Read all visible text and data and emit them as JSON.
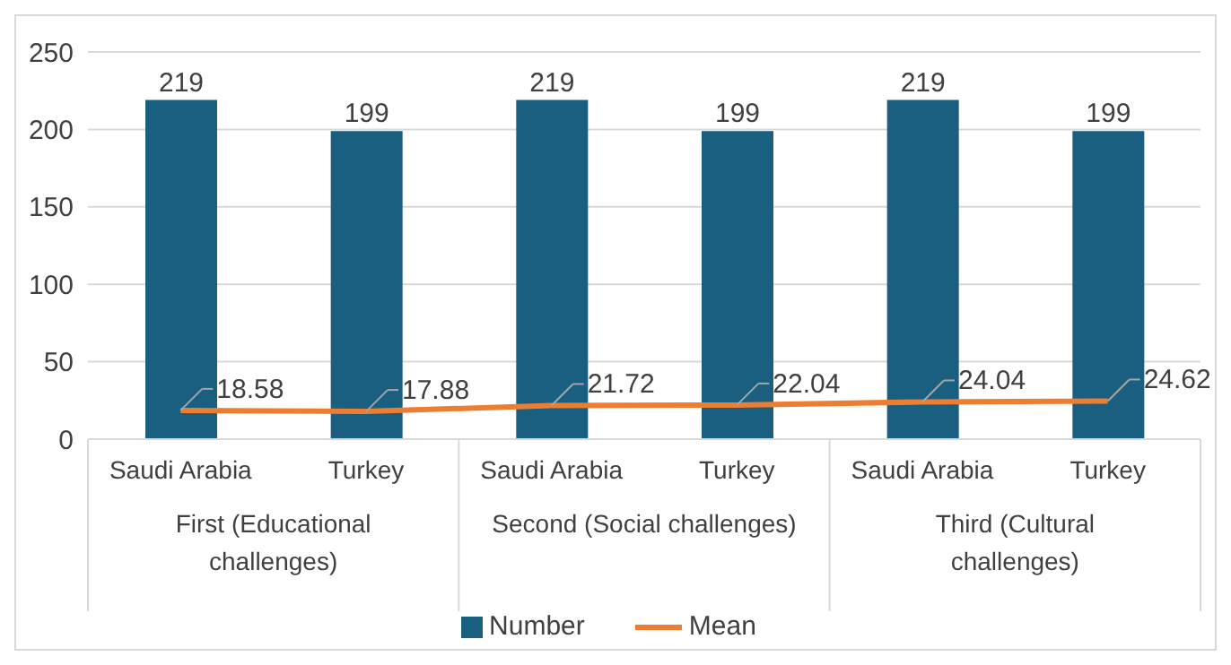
{
  "chart_data": {
    "type": "bar",
    "categories": [
      "Saudi Arabia",
      "Turkey",
      "Saudi Arabia",
      "Turkey",
      "Saudi Arabia",
      "Turkey"
    ],
    "series": [
      {
        "name": "Number",
        "color": "#1a5e80",
        "values": [
          219,
          199,
          219,
          199,
          219,
          199
        ]
      },
      {
        "name": "Mean",
        "type": "line",
        "color": "#ed7d31",
        "values": [
          18.58,
          17.88,
          21.72,
          22.04,
          24.04,
          24.62
        ]
      }
    ],
    "ylim": [
      0,
      250
    ],
    "yticks": [
      0,
      50,
      100,
      150,
      200,
      250
    ],
    "grid": "y",
    "legend": "bottom",
    "data_labels": true,
    "marker": "none",
    "annotations": [
      "First (Educational challenges)",
      "Second (Social challenges)",
      "Third (Cultural challenges)"
    ]
  }
}
